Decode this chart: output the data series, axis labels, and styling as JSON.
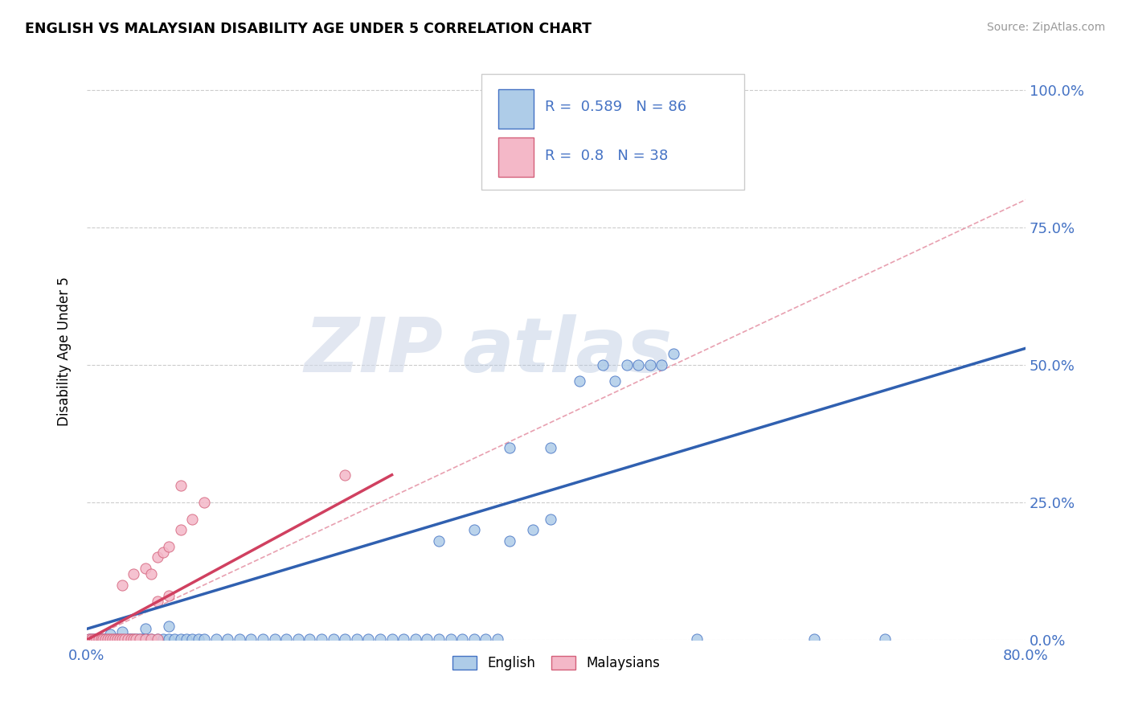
{
  "title": "ENGLISH VS MALAYSIAN DISABILITY AGE UNDER 5 CORRELATION CHART",
  "source": "Source: ZipAtlas.com",
  "ylabel": "Disability Age Under 5",
  "xlim": [
    0.0,
    0.8
  ],
  "ylim": [
    0.0,
    1.05
  ],
  "xticks": [
    0.0,
    0.1,
    0.2,
    0.3,
    0.4,
    0.5,
    0.6,
    0.7,
    0.8
  ],
  "xticklabels": [
    "0.0%",
    "",
    "",
    "",
    "",
    "",
    "",
    "",
    "80.0%"
  ],
  "ytick_positions": [
    0.0,
    0.25,
    0.5,
    0.75,
    1.0
  ],
  "yticklabels": [
    "0.0%",
    "25.0%",
    "50.0%",
    "75.0%",
    "100.0%"
  ],
  "english_color": "#aecce8",
  "english_edge_color": "#4472c4",
  "malaysian_color": "#f4b8c8",
  "malaysian_edge_color": "#d4607a",
  "english_r": 0.589,
  "english_n": 86,
  "malaysian_r": 0.8,
  "malaysian_n": 38,
  "legend_label_english": "English",
  "legend_label_malaysian": "Malaysians",
  "watermark_zip": "ZIP",
  "watermark_atlas": "atlas",
  "ref_line_color": "#e8a0b0",
  "eng_line_color": "#3060b0",
  "mal_line_color": "#d04060",
  "legend_stat_color": "#4472c4",
  "tick_color": "#4472c4"
}
